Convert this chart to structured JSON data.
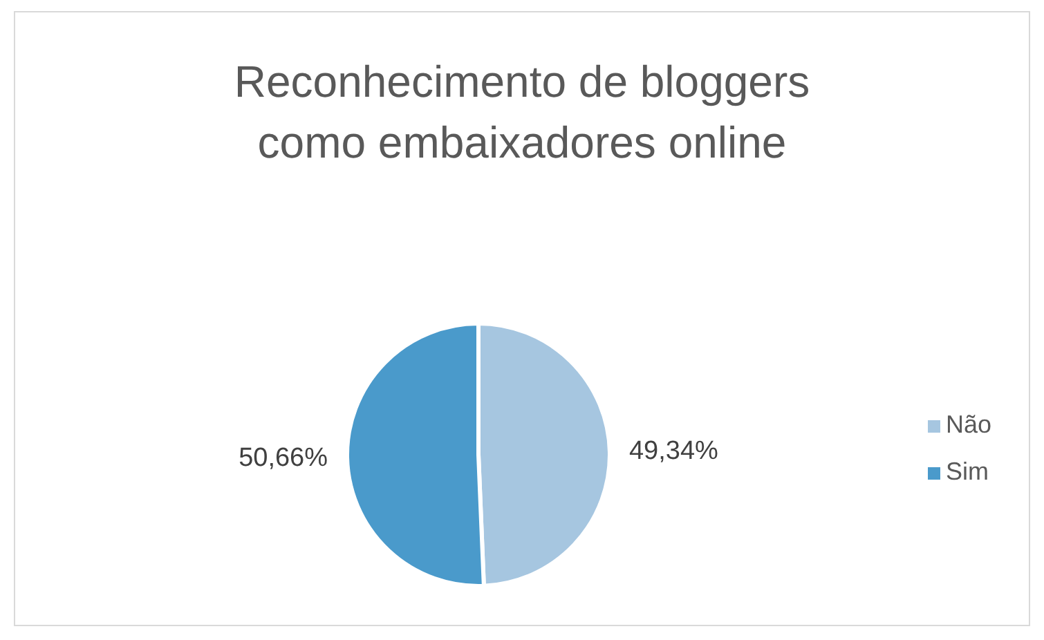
{
  "chart_data": {
    "type": "pie",
    "title": "Reconhecimento de bloggers como embaixadores online",
    "categories": [
      "Não",
      "Sim"
    ],
    "values": [
      49.34,
      50.66
    ],
    "colors": [
      "#a6c6e0",
      "#4a9acb"
    ],
    "value_labels": [
      "49,34%",
      "50,66%"
    ],
    "legend": "right"
  }
}
